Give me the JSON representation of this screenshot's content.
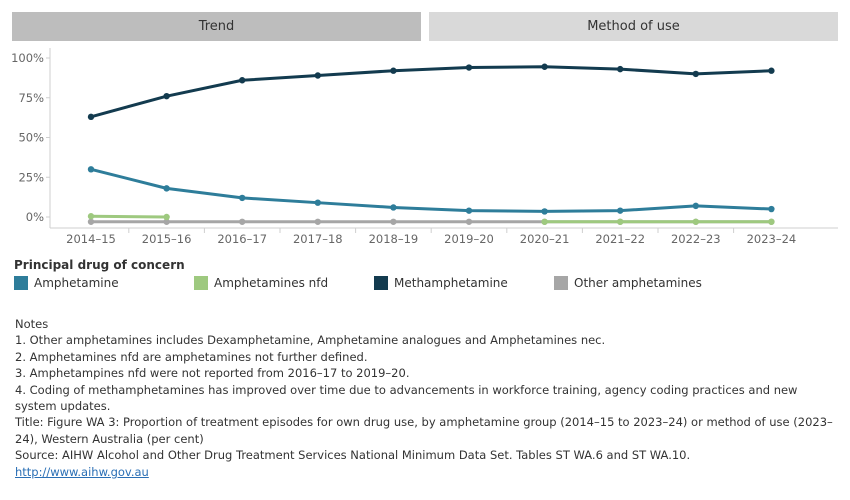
{
  "tabs": [
    {
      "label": "Trend"
    },
    {
      "label": "Method of use"
    }
  ],
  "legend": {
    "title": "Principal drug of concern"
  },
  "notes": {
    "heading": "Notes",
    "lines": [
      "1. Other amphetamines includes Dexamphetamine, Amphetamine analogues and Amphetamines nec.",
      "2. Amphetamines nfd are amphetamines not further defined.",
      "3. Amphetampines nfd were not reported from 2016–17 to 2019–20.",
      "4. Coding of methamphetamines has improved over time due to advancements in workforce training, agency coding practices and new system updates.",
      "Title: Figure WA 3: Proportion of treatment episodes for own drug use, by amphetamine group (2014–15 to 2023–24) or method of use (2023–24), Western Australia (per cent)",
      "Source: AIHW Alcohol and Other Drug Treatment Services National Minimum Data Set. Tables ST WA.6 and ST WA.10."
    ],
    "link": "http://www.aihw.gov.au"
  },
  "chart_data": {
    "type": "line",
    "title": "",
    "xlabel": "",
    "ylabel": "",
    "ylim": [
      0,
      100
    ],
    "yticks": [
      0,
      25,
      50,
      75,
      100
    ],
    "ytick_labels": [
      "0%",
      "25%",
      "50%",
      "75%",
      "100%"
    ],
    "x": [
      "2014–15",
      "2015–16",
      "2016–17",
      "2017–18",
      "2018–19",
      "2019–20",
      "2020–21",
      "2021–22",
      "2022–23",
      "2023–24"
    ],
    "grid": false,
    "legend_position": "bottom",
    "series": [
      {
        "name": "Amphetamine",
        "color": "#2e7d9a",
        "values": [
          30,
          18,
          12,
          9,
          6,
          4,
          3.5,
          4,
          7,
          5
        ]
      },
      {
        "name": "Amphetamines nfd",
        "color": "#9ec97f",
        "values": [
          0.5,
          0,
          null,
          null,
          null,
          null,
          -3,
          -3,
          -3,
          -3
        ]
      },
      {
        "name": "Methamphetamine",
        "color": "#133b4f",
        "values": [
          63,
          76,
          86,
          89,
          92,
          94,
          94.5,
          93,
          90,
          92
        ]
      },
      {
        "name": "Other amphetamines",
        "color": "#a6a6a6",
        "values": [
          -3,
          -3,
          -3,
          -3,
          -3,
          -3,
          -3,
          -3,
          -3,
          -3
        ]
      }
    ]
  }
}
